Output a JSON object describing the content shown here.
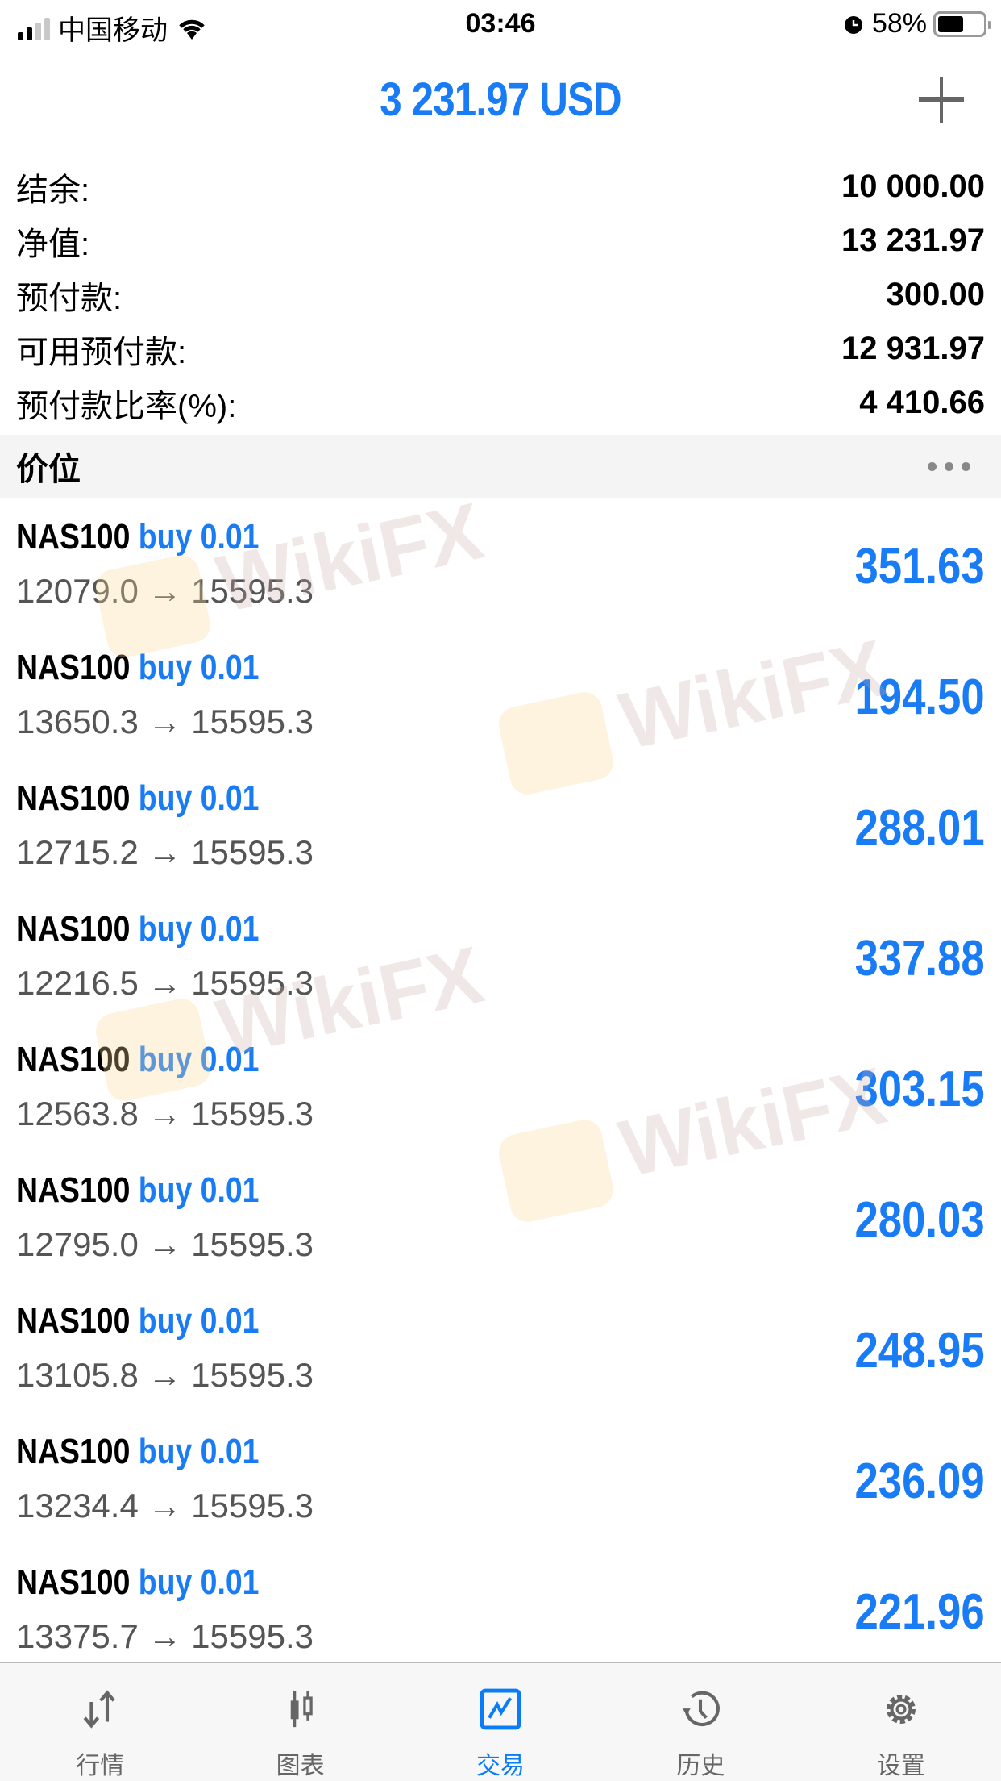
{
  "status_bar": {
    "carrier": "中国移动",
    "time": "03:46",
    "battery": "58%",
    "battery_level": 0.58
  },
  "header": {
    "title": "3 231.97 USD",
    "add_icon": "plus-icon"
  },
  "summary": [
    {
      "label": "结余:",
      "value": "10 000.00"
    },
    {
      "label": "净值:",
      "value": "13 231.97"
    },
    {
      "label": "预付款:",
      "value": "300.00"
    },
    {
      "label": "可用预付款:",
      "value": "12 931.97"
    },
    {
      "label": "预付款比率(%):",
      "value": "4 410.66"
    }
  ],
  "section": {
    "title": "价位",
    "menu_icon": "more-dots-icon"
  },
  "positions": [
    {
      "symbol": "NAS100",
      "type": "buy 0.01",
      "prices": "12079.0 → 15595.3",
      "profit": "351.63"
    },
    {
      "symbol": "NAS100",
      "type": "buy 0.01",
      "prices": "13650.3 → 15595.3",
      "profit": "194.50"
    },
    {
      "symbol": "NAS100",
      "type": "buy 0.01",
      "prices": "12715.2 → 15595.3",
      "profit": "288.01"
    },
    {
      "symbol": "NAS100",
      "type": "buy 0.01",
      "prices": "12216.5 → 15595.3",
      "profit": "337.88"
    },
    {
      "symbol": "NAS100",
      "type": "buy 0.01",
      "prices": "12563.8 → 15595.3",
      "profit": "303.15"
    },
    {
      "symbol": "NAS100",
      "type": "buy 0.01",
      "prices": "12795.0 → 15595.3",
      "profit": "280.03"
    },
    {
      "symbol": "NAS100",
      "type": "buy 0.01",
      "prices": "13105.8 → 15595.3",
      "profit": "248.95"
    },
    {
      "symbol": "NAS100",
      "type": "buy 0.01",
      "prices": "13234.4 → 15595.3",
      "profit": "236.09"
    },
    {
      "symbol": "NAS100",
      "type": "buy 0.01",
      "prices": "13375.7 → 15595.3",
      "profit": "221.96"
    }
  ],
  "watermark": "WikiFX",
  "tabs": [
    {
      "label": "行情",
      "icon": "quotes-arrows-icon"
    },
    {
      "label": "图表",
      "icon": "candlestick-icon"
    },
    {
      "label": "交易",
      "icon": "trade-chart-icon",
      "active": true
    },
    {
      "label": "历史",
      "icon": "history-clock-icon"
    },
    {
      "label": "设置",
      "icon": "gear-icon"
    }
  ],
  "colors": {
    "accent": "#1a7cf5",
    "tab_active": "#0a7cf7",
    "tab_inactive": "#666666"
  }
}
